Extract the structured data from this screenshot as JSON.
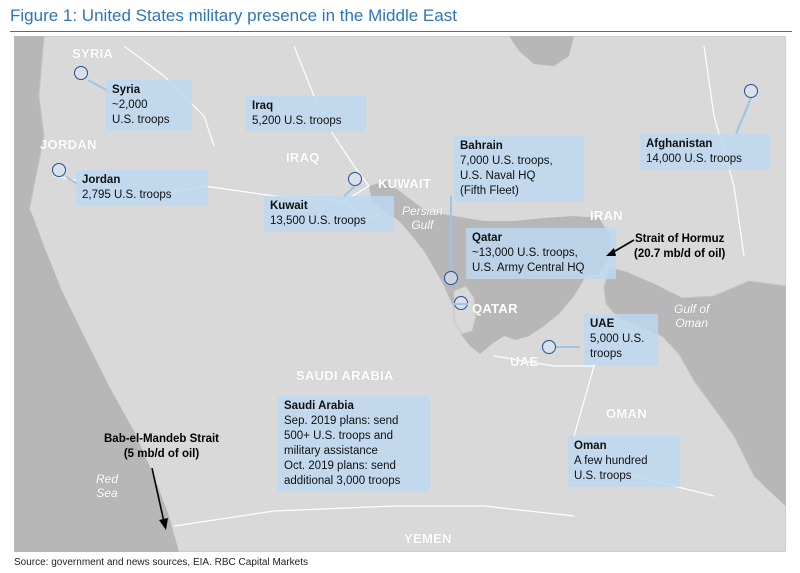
{
  "figure": {
    "title": "Figure 1: United States military presence in the Middle East",
    "source": "Source: government and news sources, EIA. RBC Capital Markets"
  },
  "regions": {
    "syria": "SYRIA",
    "jordan": "JORDAN",
    "iraq": "IRAQ",
    "kuwait": "KUWAIT",
    "iran": "IRAN",
    "qatar": "QATAR",
    "uae": "UAE",
    "saudi_arabia": "SAUDI ARABIA",
    "oman": "OMAN",
    "yemen": "YEMEN"
  },
  "water_bodies": {
    "persian_gulf": [
      "Persian",
      "Gulf"
    ],
    "gulf_of_oman": [
      "Gulf of",
      "Oman"
    ],
    "red_sea": [
      "Red",
      "Sea"
    ]
  },
  "callouts": {
    "syria": {
      "name": "Syria",
      "lines": [
        "~2,000",
        "U.S. troops"
      ]
    },
    "jordan": {
      "name": "Jordan",
      "lines": [
        "2,795 U.S. troops"
      ]
    },
    "iraq": {
      "name": "Iraq",
      "lines": [
        "5,200 U.S. troops"
      ]
    },
    "kuwait": {
      "name": "Kuwait",
      "lines": [
        "13,500 U.S. troops"
      ]
    },
    "bahrain": {
      "name": "Bahrain",
      "lines": [
        "7,000 U.S. troops,",
        "U.S. Naval HQ",
        "(Fifth Fleet)"
      ]
    },
    "afghanistan": {
      "name": "Afghanistan",
      "lines": [
        "14,000 U.S. troops"
      ]
    },
    "qatar": {
      "name": "Qatar",
      "lines": [
        "~13,000 U.S. troops,",
        "U.S. Army Central HQ"
      ]
    },
    "uae": {
      "name": "UAE",
      "lines": [
        "5,000 U.S.",
        "troops"
      ]
    },
    "saudi_arabia": {
      "name": "Saudi Arabia",
      "lines": [
        "Sep. 2019 plans: send",
        "500+ U.S. troops and",
        "military assistance",
        "Oct. 2019 plans: send",
        "additional 3,000 troops"
      ]
    },
    "oman": {
      "name": "Oman",
      "lines": [
        "A few hundred",
        "U.S. troops"
      ]
    }
  },
  "straits": {
    "hormuz": [
      "Strait of Hormuz",
      "(20.7 mb/d of oil)"
    ],
    "bab_el_mandeb": [
      "Bab-el-Mandeb Strait",
      "(5 mb/d of oil)"
    ]
  },
  "colors": {
    "land": "#d9d9d9",
    "water": "#b7b7b7",
    "callout_fill": "#bdd7ee",
    "base_marker": "#1f4e9a",
    "title": "#2e75b6"
  }
}
